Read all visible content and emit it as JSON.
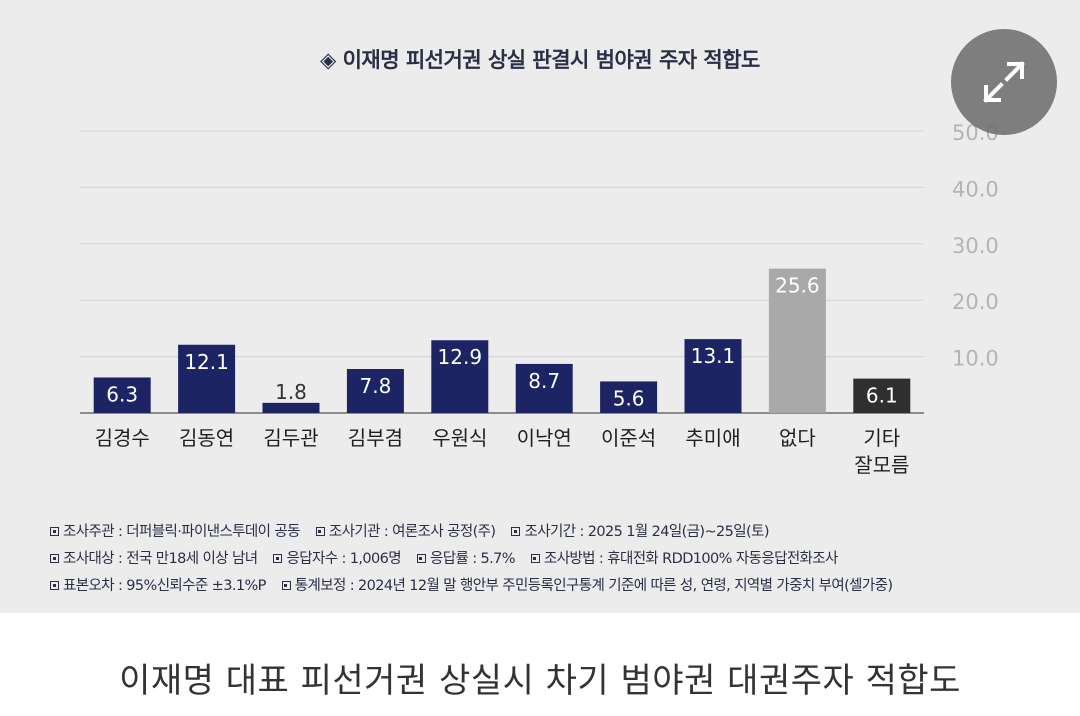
{
  "colors": {
    "panel_bg": "#ececec",
    "bar_candidate": "#1c2464",
    "bar_none": "#a9a9a9",
    "bar_other": "#2f2f2f",
    "gridline": "#d3d3d3",
    "axis_label": "#b4b4b4",
    "text_dark": "#2a2f45"
  },
  "chart_data": {
    "type": "bar",
    "title": "◈ 이재명 피선거권 상실 판결시 범야권 주자 적합도",
    "categories": [
      "김경수",
      "김동연",
      "김두관",
      "김부겸",
      "우원식",
      "이낙연",
      "이준석",
      "추미애",
      "없다",
      "기타\n잘모름"
    ],
    "values": [
      6.3,
      12.1,
      1.8,
      7.8,
      12.9,
      8.7,
      5.6,
      13.1,
      25.6,
      6.1
    ],
    "data_labels": [
      "6.3",
      "12.1",
      "1.8",
      "7.8",
      "12.9",
      "8.7",
      "5.6",
      "13.1",
      "25.6",
      "6.1"
    ],
    "bar_colors": [
      "#1c2464",
      "#1c2464",
      "#1c2464",
      "#1c2464",
      "#1c2464",
      "#1c2464",
      "#1c2464",
      "#1c2464",
      "#a9a9a9",
      "#2f2f2f"
    ],
    "yticks": [
      10,
      20,
      30,
      40,
      50
    ],
    "ytick_labels": [
      "10.0",
      "20.0",
      "30.0",
      "40.0",
      "50.0"
    ],
    "ylim": [
      0,
      50
    ],
    "yaxis_position": "right",
    "grid": true,
    "xlabel": "",
    "ylabel": ""
  },
  "notes": [
    [
      "조사주관 : 더퍼블릭·파이낸스투데이 공동",
      "조사기관 : 여론조사 공정(주)",
      "조사기간 : 2025 1월 24일(금)~25일(토)"
    ],
    [
      "조사대상 : 전국 만18세 이상 남녀",
      "응답자수 : 1,006명",
      "응답률 : 5.7%",
      "조사방법 : 휴대전화 RDD100% 자동응답전화조사"
    ],
    [
      "표본오차 : 95%신뢰수준 ±3.1%P",
      "통계보정 : 2024년 12월 말 행안부 주민등록인구통계 기준에 따른 성, 연령, 지역별 가중치 부여(셀가중)"
    ]
  ],
  "caption": "이재명 대표 피선거권 상실시 차기 범야권 대권주자 적합도",
  "expand_icon": "expand-arrows-icon"
}
